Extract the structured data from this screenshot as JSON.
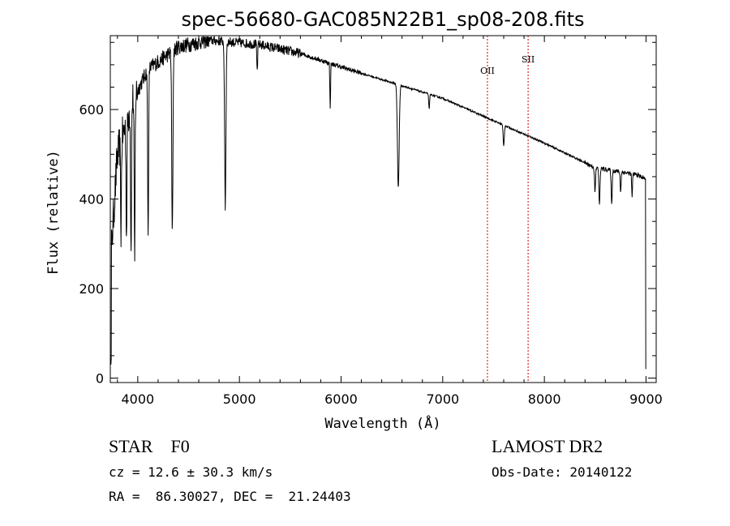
{
  "chart_data": {
    "type": "line",
    "title": "spec-56680-GAC085N22B1_sp08-208.fits",
    "xlabel": "Wavelength (Å)",
    "ylabel": "Flux (relative)",
    "xlim": [
      3730,
      9100
    ],
    "ylim": [
      -10,
      765
    ],
    "xticks": [
      4000,
      5000,
      6000,
      7000,
      8000,
      9000
    ],
    "yticks": [
      0,
      200,
      400,
      600
    ],
    "continuum": [
      [
        3730,
        250
      ],
      [
        3800,
        500
      ],
      [
        3950,
        620
      ],
      [
        4100,
        690
      ],
      [
        4400,
        740
      ],
      [
        4700,
        755
      ],
      [
        5200,
        745
      ],
      [
        5600,
        725
      ],
      [
        6000,
        695
      ],
      [
        6500,
        660
      ],
      [
        7000,
        625
      ],
      [
        7500,
        575
      ],
      [
        8000,
        525
      ],
      [
        8500,
        470
      ],
      [
        8900,
        455
      ],
      [
        9000,
        445
      ]
    ],
    "absorption_lines": [
      {
        "wave": 3835,
        "depth": 200,
        "width": 6
      },
      {
        "wave": 3889,
        "depth": 260,
        "width": 6
      },
      {
        "wave": 3934,
        "depth": 330,
        "width": 6
      },
      {
        "wave": 3969,
        "depth": 380,
        "width": 6
      },
      {
        "wave": 4102,
        "depth": 360,
        "width": 7
      },
      {
        "wave": 4340,
        "depth": 410,
        "width": 8
      },
      {
        "wave": 4861,
        "depth": 370,
        "width": 9
      },
      {
        "wave": 5175,
        "depth": 60,
        "width": 6
      },
      {
        "wave": 5893,
        "depth": 100,
        "width": 5
      },
      {
        "wave": 6563,
        "depth": 230,
        "width": 12
      },
      {
        "wave": 6867,
        "depth": 35,
        "width": 6
      },
      {
        "wave": 7600,
        "depth": 45,
        "width": 8
      },
      {
        "wave": 8498,
        "depth": 55,
        "width": 7
      },
      {
        "wave": 8542,
        "depth": 85,
        "width": 7
      },
      {
        "wave": 8662,
        "depth": 75,
        "width": 7
      },
      {
        "wave": 8750,
        "depth": 45,
        "width": 6
      },
      {
        "wave": 8863,
        "depth": 50,
        "width": 6
      }
    ],
    "line_markers": [
      {
        "wave": 7440,
        "label": "OII",
        "label_flux": 680
      },
      {
        "wave": 7840,
        "label": "SII",
        "label_flux": 705
      }
    ],
    "line_marker_color": "#cc0000"
  },
  "info": {
    "class": "STAR    F0",
    "survey": "LAMOST DR2",
    "cz": "cz = 12.6 ± 30.3 km/s",
    "obs_date": "Obs-Date: 20140122",
    "radec": "RA =  86.30027, DEC =  21.24403"
  }
}
